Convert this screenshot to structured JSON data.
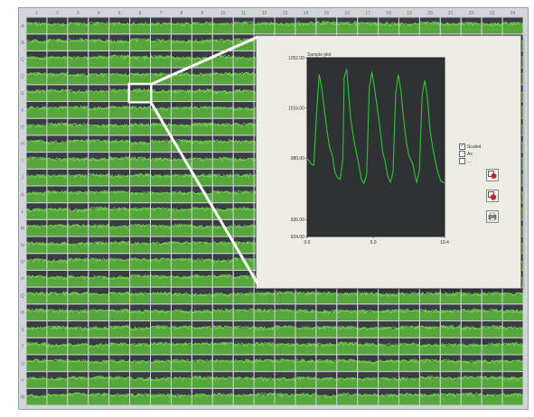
{
  "grid": {
    "columns": 24,
    "rows": 23,
    "column_ticks": [
      "1",
      "2",
      "3",
      "4",
      "5",
      "6",
      "7",
      "8",
      "9",
      "10",
      "11",
      "12",
      "13",
      "14",
      "15",
      "16",
      "17",
      "18",
      "19",
      "20",
      "21",
      "22",
      "23",
      "24"
    ],
    "row_ticks": [
      "A",
      "B",
      "C",
      "D",
      "E",
      "F",
      "G",
      "H",
      "I",
      "J",
      "K",
      "L",
      "M",
      "N",
      "O",
      "P",
      "Q",
      "R",
      "S",
      "T",
      "U",
      "V",
      "W"
    ],
    "trace_color": "#5cb83a",
    "background_color": "#3a3c44",
    "selected_well": {
      "column": 6,
      "row": 5
    }
  },
  "inset": {
    "title": "Sample plot",
    "legend": [
      {
        "label": "Scaled",
        "checked": true
      },
      {
        "label": "Ax",
        "checked": false
      },
      {
        "label": "...",
        "checked": false
      }
    ],
    "tools": [
      {
        "icon": "zoom-icon"
      },
      {
        "icon": "pan-icon"
      },
      {
        "icon": "print-icon"
      }
    ]
  },
  "chart_data": {
    "type": "line",
    "title": "Sample plot",
    "xlabel": "",
    "ylabel": "",
    "xlim": [
      0,
      10.4
    ],
    "ylim": [
      924.0,
      1052.0
    ],
    "x_ticks": [
      "0.0",
      "5.0",
      "10.4"
    ],
    "y_ticks": [
      "924.00",
      "936.00",
      "980.00",
      "1016.00",
      "1052.00"
    ],
    "series": [
      {
        "color": "#2ec82e",
        "x": [
          0.0,
          0.3,
          0.5,
          0.7,
          0.9,
          1.1,
          1.3,
          1.5,
          1.7,
          1.9,
          2.1,
          2.3,
          2.5,
          2.7,
          2.8,
          3.0,
          3.1,
          3.3,
          3.5,
          3.7,
          3.9,
          4.1,
          4.3,
          4.5,
          4.7,
          4.9,
          5.1,
          5.4,
          5.6,
          5.7,
          5.9,
          6.1,
          6.3,
          6.5,
          6.7,
          6.9,
          7.1,
          7.3,
          7.5,
          7.7,
          8.0,
          8.2,
          8.3,
          8.5,
          8.7,
          8.9,
          9.1,
          9.3,
          9.5,
          9.7,
          9.9,
          10.1,
          10.4
        ],
        "y": [
          980,
          976,
          975,
          1010,
          1040,
          1030,
          1015,
          1000,
          988,
          982,
          970,
          966,
          965,
          980,
          1038,
          1044,
          1030,
          1008,
          995,
          985,
          976,
          965,
          962,
          968,
          1030,
          1042,
          1030,
          1010,
          995,
          985,
          978,
          967,
          963,
          970,
          1026,
          1040,
          1028,
          1008,
          992,
          982,
          976,
          966,
          963,
          972,
          1025,
          1036,
          1024,
          1000,
          988,
          978,
          970,
          964,
          962
        ]
      }
    ]
  }
}
